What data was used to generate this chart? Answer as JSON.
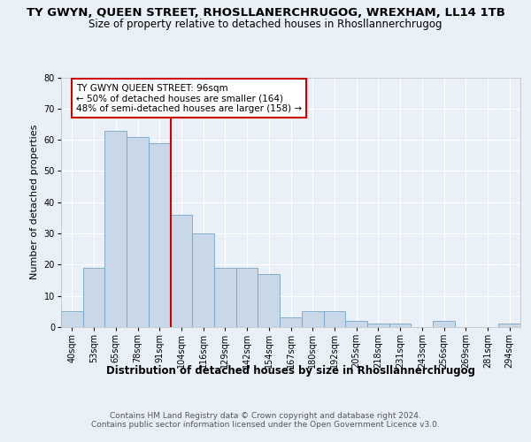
{
  "title_line1": "TY GWYN, QUEEN STREET, RHOSLLANERCHRUGOG, WREXHAM, LL14 1TB",
  "title_line2": "Size of property relative to detached houses in Rhosllannerchrugog",
  "xlabel": "Distribution of detached houses by size in Rhosllannerchrugog",
  "ylabel": "Number of detached properties",
  "bins": [
    "40sqm",
    "53sqm",
    "65sqm",
    "78sqm",
    "91sqm",
    "104sqm",
    "116sqm",
    "129sqm",
    "142sqm",
    "154sqm",
    "167sqm",
    "180sqm",
    "192sqm",
    "205sqm",
    "218sqm",
    "231sqm",
    "243sqm",
    "256sqm",
    "269sqm",
    "281sqm",
    "294sqm"
  ],
  "values": [
    5,
    19,
    63,
    61,
    59,
    36,
    30,
    19,
    19,
    17,
    3,
    5,
    5,
    2,
    1,
    1,
    0,
    2,
    0,
    0,
    1
  ],
  "bar_color": "#c8d8e8",
  "bar_edge_color": "#6699bb",
  "annotation_text": "TY GWYN QUEEN STREET: 96sqm\n← 50% of detached houses are smaller (164)\n48% of semi-detached houses are larger (158) →",
  "annotation_box_color": "#ffffff",
  "annotation_box_edge": "#cc0000",
  "vline_color": "#cc0000",
  "vline_bin_index": 4,
  "ylim": [
    0,
    80
  ],
  "yticks": [
    0,
    10,
    20,
    30,
    40,
    50,
    60,
    70,
    80
  ],
  "background_color": "#eaf0f8",
  "footer1": "Contains HM Land Registry data © Crown copyright and database right 2024.",
  "footer2": "Contains public sector information licensed under the Open Government Licence v3.0.",
  "title_fontsize": 9.5,
  "subtitle_fontsize": 8.5,
  "xlabel_fontsize": 8.5,
  "ylabel_fontsize": 8,
  "tick_fontsize": 7,
  "annotation_fontsize": 7.5,
  "footer_fontsize": 6.5
}
